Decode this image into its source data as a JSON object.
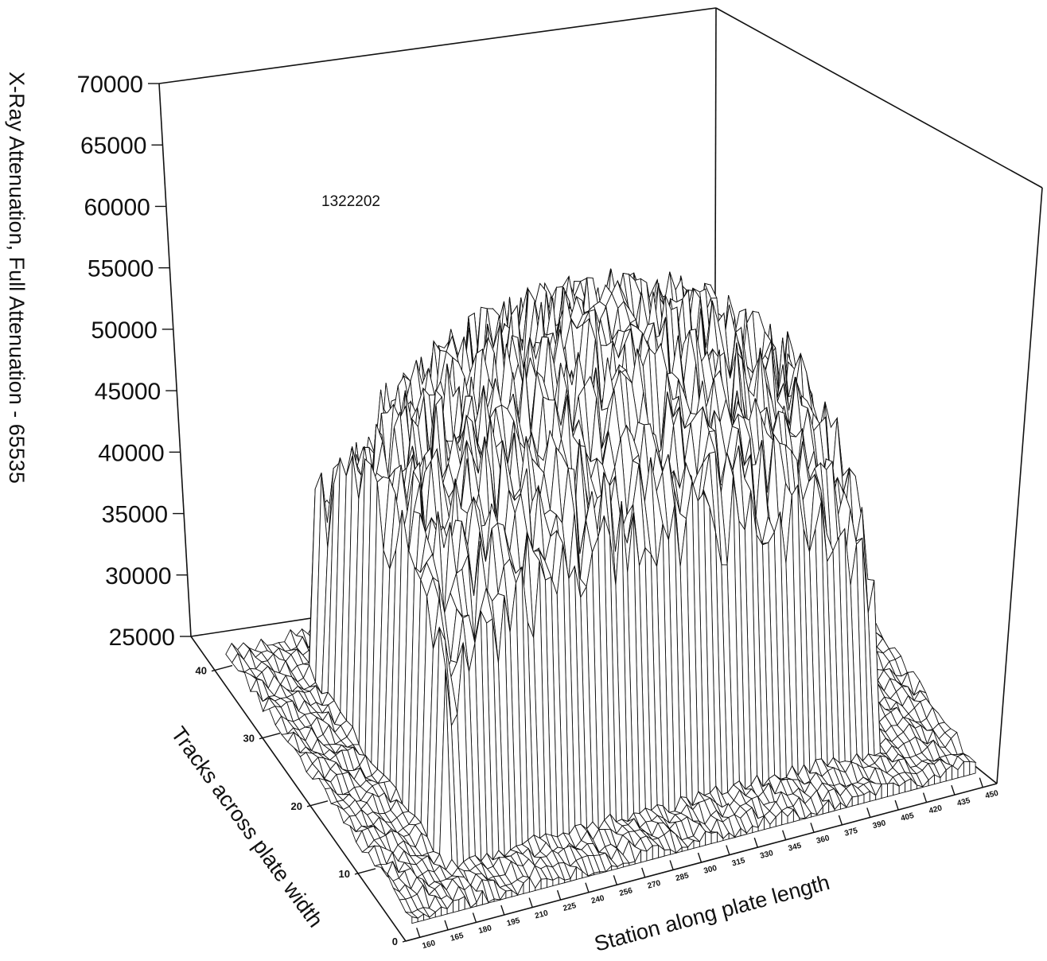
{
  "chart_data": {
    "type": "surface",
    "annotation": "1322202",
    "zlabel": "X-Ray Attenuation, Full Attenuation - 65535",
    "xlabel": "Station along plate length",
    "ylabel": "Tracks across plate width",
    "z_ticks": [
      "70000",
      "65000",
      "60000",
      "55000",
      "50000",
      "45000",
      "40000",
      "35000",
      "30000",
      "25000"
    ],
    "x_ticks": [
      "160",
      "165",
      "180",
      "195",
      "210",
      "225",
      "240",
      "256",
      "270",
      "285",
      "300",
      "315",
      "330",
      "345",
      "360",
      "375",
      "390",
      "405",
      "420",
      "435",
      "450"
    ],
    "y_ticks": [
      "0",
      "10",
      "20",
      "30",
      "40"
    ],
    "zlim": [
      25000,
      70000
    ],
    "xlim": [
      150,
      450
    ],
    "ylim": [
      0,
      45
    ],
    "surface_model": {
      "plateau_x": [
        190,
        410
      ],
      "plateau_y": [
        8,
        36
      ],
      "peak_value": 55000,
      "edge_value": 38000,
      "base_value": 25000,
      "noise_amplitude": 4000
    },
    "grid": false
  }
}
